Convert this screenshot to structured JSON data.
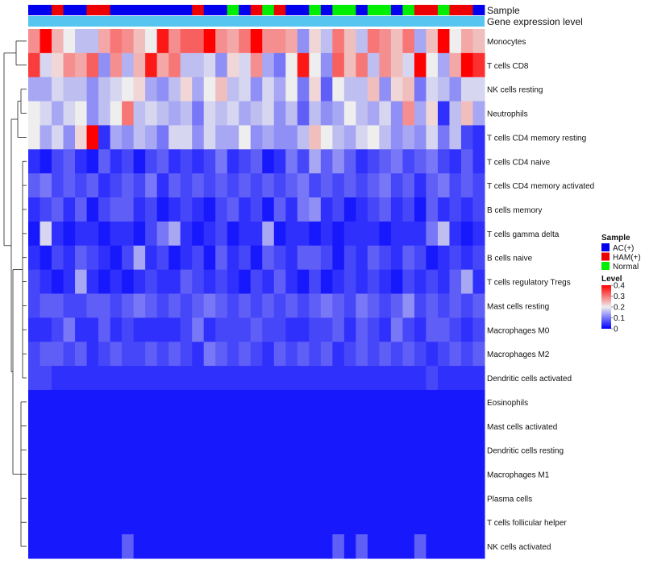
{
  "chart_data": {
    "type": "heatmap",
    "title": "",
    "annotations": {
      "sample_label": "Sample",
      "gene_label": "Gene expression level",
      "sample_groups": [
        "AC(+)",
        "AC(+)",
        "HAM(+)",
        "AC(+)",
        "AC(+)",
        "HAM(+)",
        "HAM(+)",
        "AC(+)",
        "AC(+)",
        "AC(+)",
        "AC(+)",
        "AC(+)",
        "AC(+)",
        "AC(+)",
        "HAM(+)",
        "AC(+)",
        "AC(+)",
        "Normal",
        "AC(+)",
        "HAM(+)",
        "Normal",
        "HAM(+)",
        "AC(+)",
        "AC(+)",
        "Normal",
        "AC(+)",
        "Normal",
        "Normal",
        "AC(+)",
        "Normal",
        "Normal",
        "AC(+)",
        "Normal",
        "HAM(+)",
        "HAM(+)",
        "Normal",
        "HAM(+)",
        "HAM(+)",
        "AC(+)"
      ]
    },
    "rows": [
      "Monocytes",
      "T cells CD8",
      "NK cells resting",
      "Neutrophils",
      "T cells CD4 memory resting",
      "T cells CD4 naive",
      "T cells CD4 memory activated",
      "B cells memory",
      "T cells gamma delta",
      "B cells naive",
      "T cells regulatory  Tregs",
      "Mast cells resting",
      "Macrophages M0",
      "Macrophages M2",
      "Dendritic cells activated",
      "Eosinophils",
      "Mast cells activated",
      "Dendritic cells resting",
      "Macrophages M1",
      "Plasma cells",
      "T cells follicular helper",
      "NK cells activated"
    ],
    "values": [
      [
        0.28,
        0.4,
        0.25,
        0.2,
        0.16,
        0.16,
        0.26,
        0.3,
        0.28,
        0.24,
        0.2,
        0.38,
        0.28,
        0.32,
        0.32,
        0.4,
        0.28,
        0.26,
        0.3,
        0.4,
        0.28,
        0.28,
        0.26,
        0.12,
        0.22,
        0.16,
        0.3,
        0.24,
        0.16,
        0.3,
        0.28,
        0.24,
        0.3,
        0.14,
        0.24,
        0.4,
        0.2,
        0.26,
        0.24
      ],
      [
        0.35,
        0.18,
        0.22,
        0.28,
        0.26,
        0.32,
        0.12,
        0.28,
        0.15,
        0.25,
        0.38,
        0.26,
        0.3,
        0.16,
        0.16,
        0.18,
        0.12,
        0.22,
        0.18,
        0.28,
        0.14,
        0.1,
        0.2,
        0.38,
        0.2,
        0.12,
        0.32,
        0.24,
        0.3,
        0.16,
        0.28,
        0.24,
        0.18,
        0.4,
        0.2,
        0.14,
        0.26,
        0.4,
        0.36
      ],
      [
        0.14,
        0.14,
        0.18,
        0.16,
        0.16,
        0.12,
        0.16,
        0.18,
        0.2,
        0.22,
        0.14,
        0.12,
        0.16,
        0.22,
        0.14,
        0.2,
        0.24,
        0.16,
        0.18,
        0.12,
        0.18,
        0.14,
        0.2,
        0.1,
        0.22,
        0.08,
        0.2,
        0.16,
        0.16,
        0.24,
        0.12,
        0.22,
        0.24,
        0.1,
        0.18,
        0.16,
        0.12,
        0.18,
        0.18
      ],
      [
        0.2,
        0.18,
        0.14,
        0.18,
        0.2,
        0.12,
        0.16,
        0.2,
        0.3,
        0.16,
        0.18,
        0.16,
        0.14,
        0.16,
        0.1,
        0.18,
        0.16,
        0.18,
        0.14,
        0.16,
        0.18,
        0.12,
        0.16,
        0.08,
        0.16,
        0.12,
        0.14,
        0.2,
        0.16,
        0.14,
        0.18,
        0.12,
        0.28,
        0.14,
        0.22,
        0.04,
        0.16,
        0.24,
        0.14
      ],
      [
        0.2,
        0.14,
        0.18,
        0.12,
        0.22,
        0.4,
        0.04,
        0.14,
        0.12,
        0.16,
        0.14,
        0.1,
        0.18,
        0.18,
        0.12,
        0.18,
        0.14,
        0.14,
        0.2,
        0.12,
        0.14,
        0.12,
        0.12,
        0.16,
        0.24,
        0.2,
        0.16,
        0.14,
        0.18,
        0.2,
        0.16,
        0.12,
        0.14,
        0.12,
        0.18,
        0.1,
        0.16,
        0.06,
        0.04
      ],
      [
        0.04,
        0.02,
        0.06,
        0.08,
        0.04,
        0.02,
        0.08,
        0.04,
        0.06,
        0.02,
        0.06,
        0.08,
        0.04,
        0.06,
        0.04,
        0.06,
        0.1,
        0.04,
        0.06,
        0.08,
        0.02,
        0.04,
        0.1,
        0.06,
        0.14,
        0.08,
        0.12,
        0.08,
        0.04,
        0.06,
        0.08,
        0.1,
        0.06,
        0.08,
        0.1,
        0.06,
        0.04,
        0.08,
        0.04
      ],
      [
        0.08,
        0.1,
        0.06,
        0.08,
        0.06,
        0.08,
        0.04,
        0.06,
        0.08,
        0.06,
        0.1,
        0.04,
        0.08,
        0.06,
        0.08,
        0.06,
        0.08,
        0.06,
        0.08,
        0.06,
        0.08,
        0.06,
        0.08,
        0.1,
        0.06,
        0.08,
        0.06,
        0.08,
        0.06,
        0.08,
        0.1,
        0.06,
        0.08,
        0.04,
        0.08,
        0.1,
        0.06,
        0.08,
        0.06
      ],
      [
        0.04,
        0.06,
        0.08,
        0.04,
        0.08,
        0.02,
        0.06,
        0.08,
        0.08,
        0.04,
        0.06,
        0.02,
        0.04,
        0.06,
        0.04,
        0.02,
        0.06,
        0.08,
        0.04,
        0.06,
        0.02,
        0.08,
        0.04,
        0.1,
        0.12,
        0.04,
        0.06,
        0.02,
        0.04,
        0.06,
        0.08,
        0.04,
        0.06,
        0.02,
        0.08,
        0.04,
        0.06,
        0.04,
        0.06
      ],
      [
        0.02,
        0.18,
        0.04,
        0.02,
        0.04,
        0.04,
        0.02,
        0.04,
        0.04,
        0.02,
        0.06,
        0.1,
        0.14,
        0.04,
        0.02,
        0.04,
        0.06,
        0.02,
        0.04,
        0.04,
        0.14,
        0.02,
        0.04,
        0.04,
        0.02,
        0.04,
        0.02,
        0.04,
        0.04,
        0.04,
        0.02,
        0.04,
        0.04,
        0.04,
        0.1,
        0.16,
        0.04,
        0.02,
        0.04
      ],
      [
        0.04,
        0.02,
        0.06,
        0.04,
        0.08,
        0.06,
        0.04,
        0.02,
        0.06,
        0.14,
        0.04,
        0.06,
        0.02,
        0.04,
        0.06,
        0.02,
        0.08,
        0.04,
        0.06,
        0.02,
        0.08,
        0.06,
        0.04,
        0.08,
        0.08,
        0.06,
        0.02,
        0.06,
        0.04,
        0.08,
        0.06,
        0.04,
        0.08,
        0.06,
        0.02,
        0.04,
        0.06,
        0.04,
        0.06
      ],
      [
        0.06,
        0.04,
        0.02,
        0.04,
        0.14,
        0.04,
        0.02,
        0.04,
        0.02,
        0.04,
        0.06,
        0.04,
        0.04,
        0.08,
        0.06,
        0.04,
        0.06,
        0.04,
        0.02,
        0.06,
        0.04,
        0.08,
        0.04,
        0.02,
        0.06,
        0.02,
        0.04,
        0.06,
        0.04,
        0.06,
        0.04,
        0.02,
        0.06,
        0.04,
        0.06,
        0.04,
        0.08,
        0.14,
        0.04
      ],
      [
        0.06,
        0.08,
        0.08,
        0.06,
        0.06,
        0.08,
        0.08,
        0.06,
        0.08,
        0.1,
        0.08,
        0.06,
        0.08,
        0.06,
        0.08,
        0.1,
        0.08,
        0.06,
        0.08,
        0.06,
        0.08,
        0.06,
        0.08,
        0.06,
        0.08,
        0.1,
        0.08,
        0.06,
        0.1,
        0.08,
        0.06,
        0.08,
        0.12,
        0.06,
        0.08,
        0.06,
        0.08,
        0.06,
        0.08
      ],
      [
        0.04,
        0.04,
        0.06,
        0.1,
        0.04,
        0.04,
        0.08,
        0.04,
        0.06,
        0.04,
        0.04,
        0.04,
        0.04,
        0.06,
        0.1,
        0.04,
        0.06,
        0.06,
        0.06,
        0.08,
        0.06,
        0.06,
        0.04,
        0.04,
        0.06,
        0.06,
        0.08,
        0.04,
        0.08,
        0.06,
        0.04,
        0.1,
        0.06,
        0.04,
        0.08,
        0.08,
        0.06,
        0.04,
        0.06
      ],
      [
        0.06,
        0.08,
        0.08,
        0.06,
        0.08,
        0.04,
        0.06,
        0.08,
        0.06,
        0.06,
        0.08,
        0.06,
        0.08,
        0.06,
        0.04,
        0.1,
        0.08,
        0.06,
        0.08,
        0.06,
        0.04,
        0.08,
        0.06,
        0.08,
        0.06,
        0.08,
        0.04,
        0.06,
        0.08,
        0.06,
        0.08,
        0.06,
        0.08,
        0.06,
        0.04,
        0.06,
        0.08,
        0.06,
        0.08
      ],
      [
        0.06,
        0.06,
        0.04,
        0.04,
        0.04,
        0.04,
        0.04,
        0.04,
        0.04,
        0.04,
        0.04,
        0.04,
        0.04,
        0.04,
        0.04,
        0.04,
        0.04,
        0.04,
        0.04,
        0.04,
        0.04,
        0.04,
        0.04,
        0.04,
        0.04,
        0.04,
        0.04,
        0.04,
        0.04,
        0.04,
        0.04,
        0.04,
        0.04,
        0.04,
        0.06,
        0.04,
        0.04,
        0.04,
        0.04
      ],
      [
        0.02,
        0.02,
        0.02,
        0.02,
        0.02,
        0.02,
        0.02,
        0.02,
        0.02,
        0.02,
        0.02,
        0.02,
        0.02,
        0.02,
        0.02,
        0.02,
        0.02,
        0.02,
        0.02,
        0.02,
        0.02,
        0.02,
        0.02,
        0.02,
        0.02,
        0.02,
        0.02,
        0.02,
        0.02,
        0.02,
        0.02,
        0.02,
        0.02,
        0.02,
        0.02,
        0.02,
        0.02,
        0.02,
        0.02
      ],
      [
        0.02,
        0.02,
        0.02,
        0.02,
        0.02,
        0.02,
        0.02,
        0.02,
        0.02,
        0.02,
        0.02,
        0.02,
        0.02,
        0.02,
        0.02,
        0.02,
        0.02,
        0.02,
        0.02,
        0.02,
        0.02,
        0.02,
        0.02,
        0.02,
        0.02,
        0.02,
        0.02,
        0.02,
        0.02,
        0.02,
        0.02,
        0.02,
        0.02,
        0.02,
        0.02,
        0.02,
        0.02,
        0.02,
        0.02
      ],
      [
        0.02,
        0.02,
        0.02,
        0.02,
        0.02,
        0.02,
        0.02,
        0.02,
        0.02,
        0.02,
        0.02,
        0.02,
        0.02,
        0.02,
        0.02,
        0.02,
        0.02,
        0.02,
        0.02,
        0.02,
        0.02,
        0.02,
        0.02,
        0.02,
        0.02,
        0.02,
        0.02,
        0.02,
        0.02,
        0.02,
        0.02,
        0.02,
        0.02,
        0.02,
        0.02,
        0.02,
        0.02,
        0.02,
        0.02
      ],
      [
        0.02,
        0.02,
        0.02,
        0.02,
        0.02,
        0.02,
        0.02,
        0.02,
        0.02,
        0.02,
        0.02,
        0.02,
        0.02,
        0.02,
        0.02,
        0.02,
        0.02,
        0.02,
        0.02,
        0.02,
        0.02,
        0.02,
        0.02,
        0.02,
        0.02,
        0.02,
        0.02,
        0.02,
        0.02,
        0.02,
        0.02,
        0.02,
        0.02,
        0.02,
        0.02,
        0.02,
        0.02,
        0.02,
        0.02
      ],
      [
        0.02,
        0.02,
        0.02,
        0.02,
        0.02,
        0.02,
        0.02,
        0.02,
        0.02,
        0.02,
        0.02,
        0.02,
        0.02,
        0.02,
        0.02,
        0.02,
        0.02,
        0.02,
        0.02,
        0.02,
        0.02,
        0.02,
        0.02,
        0.02,
        0.02,
        0.02,
        0.02,
        0.02,
        0.02,
        0.02,
        0.02,
        0.02,
        0.02,
        0.02,
        0.02,
        0.02,
        0.02,
        0.02,
        0.02
      ],
      [
        0.02,
        0.02,
        0.02,
        0.02,
        0.02,
        0.02,
        0.02,
        0.02,
        0.02,
        0.02,
        0.02,
        0.02,
        0.02,
        0.02,
        0.02,
        0.02,
        0.02,
        0.02,
        0.02,
        0.02,
        0.02,
        0.02,
        0.02,
        0.02,
        0.02,
        0.02,
        0.02,
        0.02,
        0.02,
        0.02,
        0.02,
        0.02,
        0.02,
        0.02,
        0.02,
        0.02,
        0.02,
        0.02,
        0.02
      ],
      [
        0.02,
        0.02,
        0.02,
        0.02,
        0.02,
        0.02,
        0.02,
        0.02,
        0.08,
        0.02,
        0.02,
        0.02,
        0.02,
        0.02,
        0.02,
        0.02,
        0.02,
        0.02,
        0.02,
        0.02,
        0.02,
        0.02,
        0.02,
        0.02,
        0.02,
        0.02,
        0.08,
        0.02,
        0.08,
        0.02,
        0.02,
        0.02,
        0.02,
        0.08,
        0.02,
        0.02,
        0.02,
        0.02,
        0.02
      ]
    ],
    "color_scale": {
      "min": 0,
      "mid": 0.2,
      "max": 0.4,
      "low_color": "#0000ff",
      "mid_color": "#eeeeee",
      "high_color": "#ff0000"
    },
    "legend": {
      "position": "right",
      "sample_title": "Sample",
      "sample_entries": [
        {
          "label": "AC(+)",
          "color": "#0000ee"
        },
        {
          "label": "HAM(+)",
          "color": "#ee0000"
        },
        {
          "label": "Normal",
          "color": "#00ee00"
        }
      ],
      "level_title": "Level",
      "level_ticks": [
        "0.4",
        "0.3",
        "0.2",
        "0.1",
        "0"
      ]
    },
    "gene_bar_color": "#56c5f0"
  }
}
